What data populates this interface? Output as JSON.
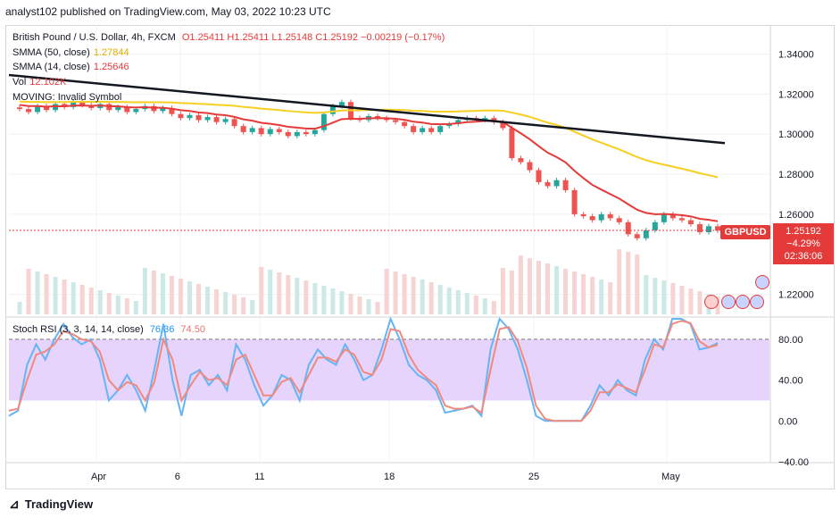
{
  "header": {
    "publish_line": "analyst102 published on TradingView.com, May 03, 2022 10:23 UTC"
  },
  "legend": {
    "symbol": "British Pound / U.S. Dollar, 4h, FXCM",
    "ohlc": "O1.25411 H1.25411 L1.25148 C1.25192 −0.00219 (−0.17%)",
    "smma50_label": "SMMA (50, close)",
    "smma50_value": "1.27844",
    "smma14_label": "SMMA (14, close)",
    "smma14_value": "1.25646",
    "vol_label": "Vol",
    "vol_value": "12.102K",
    "moving_label": "MOVING: Invalid Symbol",
    "stoch_label": "Stoch RSI (3, 3, 14, 14, close)",
    "stoch_k": "76.36",
    "stoch_d": "74.50"
  },
  "price_tag": {
    "symbol": "GBPUSD",
    "price": "1.25192",
    "change": "−4.29%",
    "timer": "02:36:06"
  },
  "footer": {
    "brand": "TradingView"
  },
  "colors": {
    "up": "#26a69a",
    "down": "#ef5350",
    "smma50": "#f5d020",
    "smma14": "#e53a3a",
    "trendline": "#131722",
    "k": "#64b5f6",
    "d": "#ef8a80",
    "band": "#e1c9fb"
  },
  "chart_data": [
    {
      "type": "candlestick",
      "ylim": [
        1.21,
        1.35
      ],
      "y_ticks": [
        "1.34000",
        "1.32000",
        "1.30000",
        "1.28000",
        "1.26000",
        "1.22000"
      ],
      "x_ticks": [
        "Apr",
        "6",
        "11",
        "18",
        "25",
        "May"
      ],
      "smma50_last": 1.27844,
      "smma14_last": 1.25646,
      "last_close": 1.25192,
      "trendline": {
        "from": 1.3295,
        "to": 1.2955
      },
      "closes": [
        1.3125,
        1.311,
        1.314,
        1.312,
        1.315,
        1.3135,
        1.316,
        1.3145,
        1.313,
        1.315,
        1.312,
        1.3135,
        1.311,
        1.3125,
        1.314,
        1.3115,
        1.313,
        1.31,
        1.308,
        1.3095,
        1.307,
        1.3085,
        1.306,
        1.3075,
        1.304,
        1.301,
        1.303,
        1.3,
        1.3025,
        1.301,
        1.299,
        1.301,
        1.3,
        1.302,
        1.31,
        1.314,
        1.316,
        1.308,
        1.307,
        1.309,
        1.308,
        1.307,
        1.306,
        1.304,
        1.301,
        1.303,
        1.301,
        1.304,
        1.305,
        1.307,
        1.308,
        1.307,
        1.308,
        1.306,
        1.303,
        1.288,
        1.286,
        1.282,
        1.276,
        1.274,
        1.277,
        1.272,
        1.26,
        1.259,
        1.257,
        1.26,
        1.258,
        1.256,
        1.25,
        1.248,
        1.252,
        1.256,
        1.26,
        1.258,
        1.257,
        1.255,
        1.251,
        1.254,
        1.2519
      ]
    },
    {
      "type": "line",
      "name": "Stoch RSI",
      "ylim": [
        -40,
        100
      ],
      "y_ticks": [
        "80.00",
        "40.00",
        "0.00",
        "−40.00"
      ],
      "band": [
        20,
        80
      ],
      "k": [
        5,
        10,
        55,
        75,
        60,
        80,
        95,
        82,
        75,
        80,
        60,
        20,
        30,
        45,
        30,
        10,
        50,
        95,
        40,
        5,
        45,
        50,
        35,
        45,
        30,
        75,
        60,
        35,
        15,
        25,
        45,
        40,
        20,
        55,
        70,
        60,
        55,
        75,
        60,
        40,
        45,
        70,
        100,
        80,
        55,
        45,
        40,
        30,
        8,
        10,
        12,
        15,
        5,
        70,
        100,
        90,
        70,
        40,
        5,
        0,
        0,
        0,
        0,
        0,
        15,
        35,
        25,
        40,
        30,
        25,
        60,
        80,
        70,
        100,
        100,
        95,
        70,
        72,
        76.36
      ],
      "d": [
        10,
        12,
        40,
        65,
        68,
        75,
        88,
        85,
        80,
        78,
        68,
        40,
        30,
        38,
        35,
        20,
        38,
        80,
        60,
        20,
        35,
        48,
        40,
        42,
        35,
        60,
        65,
        45,
        25,
        25,
        38,
        42,
        28,
        45,
        62,
        62,
        58,
        70,
        65,
        48,
        45,
        60,
        90,
        88,
        65,
        50,
        42,
        35,
        15,
        12,
        12,
        14,
        8,
        50,
        90,
        92,
        78,
        52,
        15,
        2,
        0,
        0,
        0,
        0,
        10,
        28,
        28,
        36,
        32,
        28,
        50,
        75,
        72,
        95,
        98,
        96,
        78,
        72,
        74.5
      ]
    }
  ]
}
